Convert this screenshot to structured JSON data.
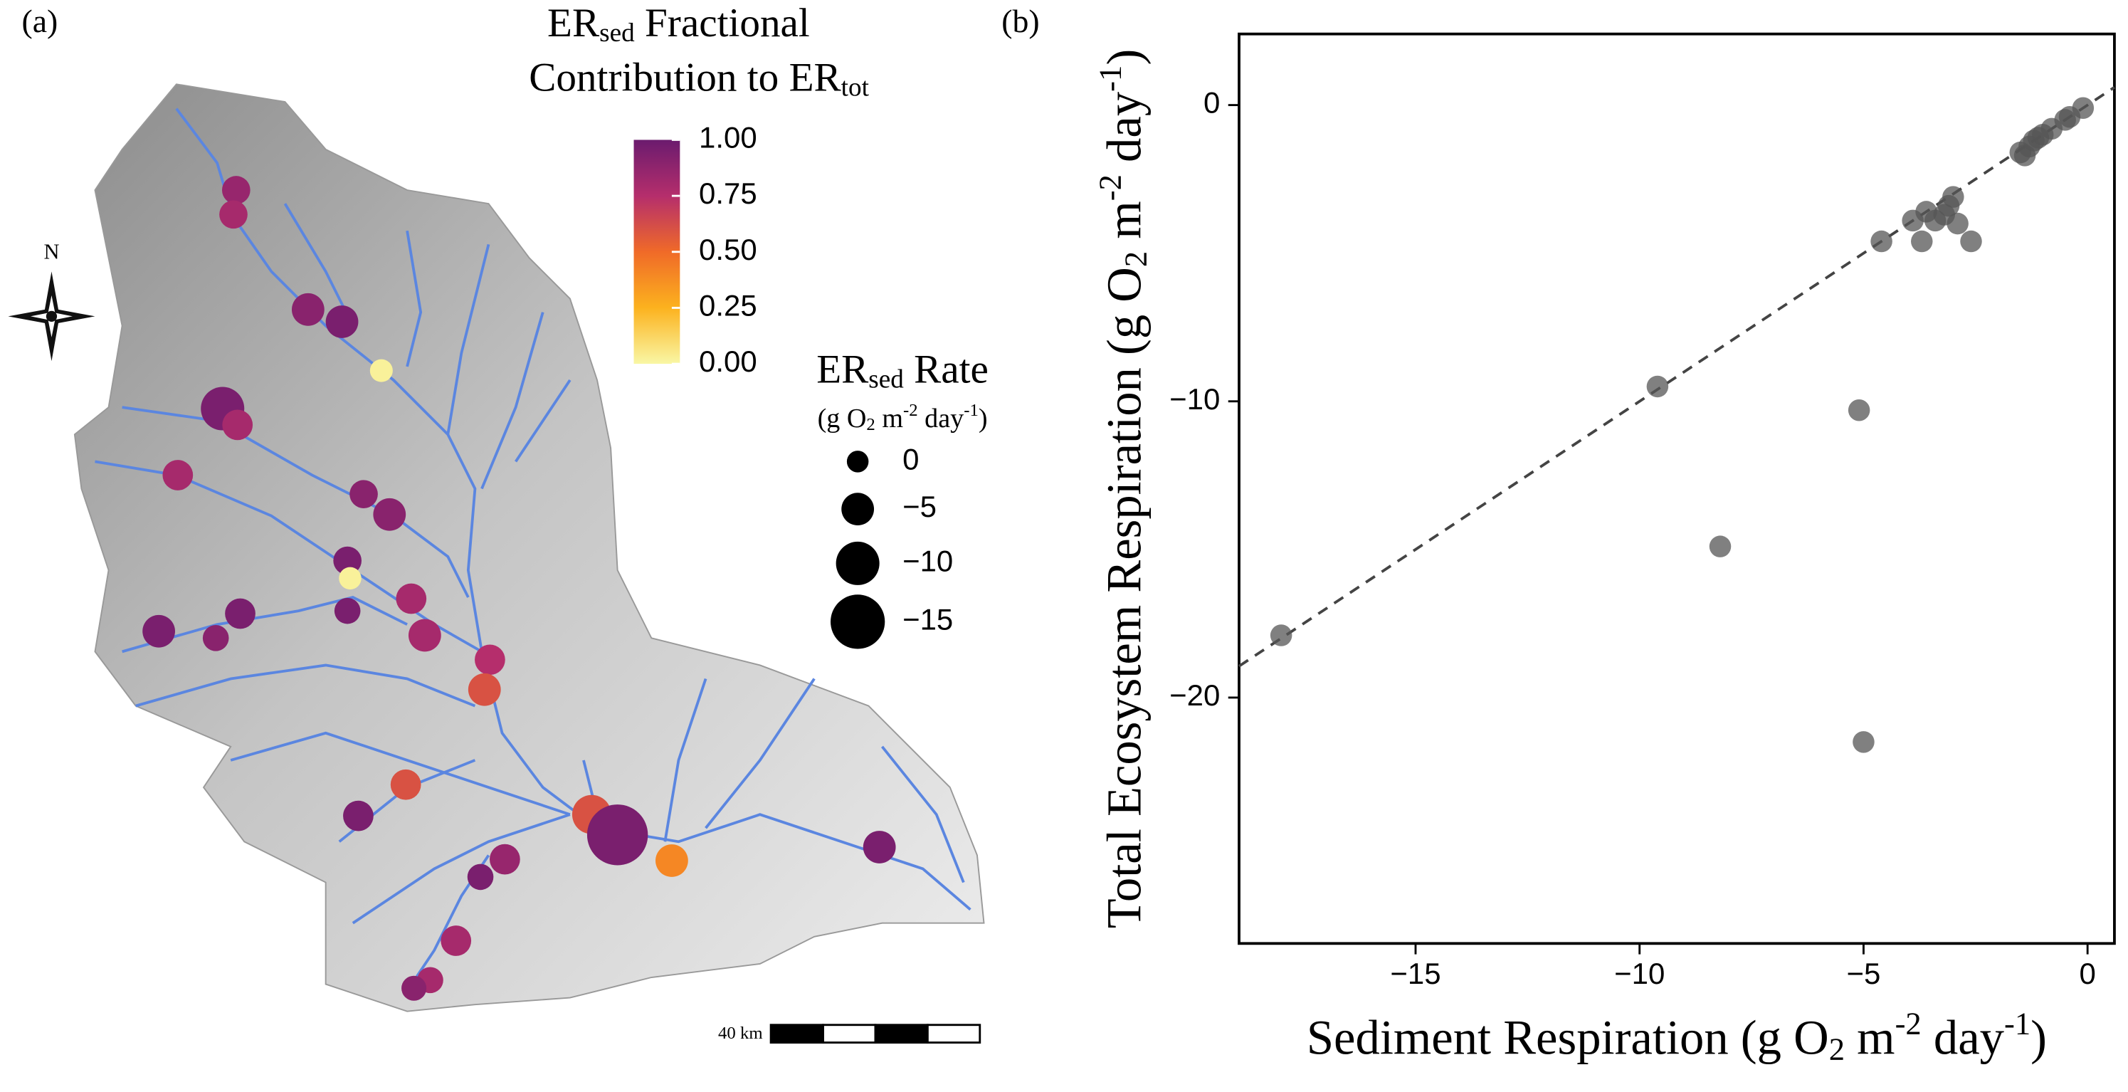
{
  "chart_data": [
    {
      "type": "map",
      "panel_label": "(a)",
      "legend_title": [
        {
          "text": "ER"
        },
        {
          "text": "sed",
          "script": "sub"
        },
        {
          "text": " Fractional"
        }
      ],
      "legend_title_2": [
        {
          "text": "Contribution to ER"
        },
        {
          "text": "tot",
          "script": "sub"
        }
      ],
      "colorscale": [
        "#f9f7a5",
        "#fcb21e",
        "#f06a28",
        "#b52e6c",
        "#6b1b6e"
      ],
      "colorlim": [
        0,
        1
      ],
      "colorticks": [
        {
          "value": 1,
          "label": "1.00"
        },
        {
          "value": 0.75,
          "label": "0.75"
        },
        {
          "value": 0.5,
          "label": "0.50"
        },
        {
          "value": 0.25,
          "label": "0.25"
        },
        {
          "value": 0,
          "label": "0.00"
        }
      ],
      "size_title": [
        {
          "text": "ER"
        },
        {
          "text": "sed",
          "script": "sub"
        },
        {
          "text": " Rate"
        }
      ],
      "size_unit": [
        {
          "text": "(g O"
        },
        {
          "text": "2",
          "script": "sub"
        },
        {
          "text": " m"
        },
        {
          "text": "-2",
          "script": "sup"
        },
        {
          "text": " day"
        },
        {
          "text": "-1",
          "script": "sup"
        },
        {
          "text": ")"
        }
      ],
      "sizeticks": [
        0,
        {
          "value": -5,
          "label": "−5"
        },
        {
          "value": -10,
          "label": "−10"
        },
        {
          "value": -15,
          "label": "−15"
        }
      ],
      "north_label": "N",
      "scale_label": "40 km",
      "sites": {
        "fraction": [
          0.85,
          0.8,
          0.9,
          0.95,
          0.02,
          0.95,
          0.8,
          0.8,
          0.9,
          0.9,
          0.95,
          0.02,
          0.8,
          0.95,
          0.95,
          0.95,
          0.9,
          0.8,
          0.75,
          0.6,
          0.6,
          0.95,
          0.6,
          0.95,
          0.4,
          0.95,
          0.85,
          0.95,
          0.8,
          0.8,
          0.9
        ],
        "rate": [
          -3,
          -3,
          -5,
          -5,
          -0.5,
          -10,
          -4,
          -4,
          -3,
          -5,
          -3,
          -0.3,
          -4,
          -2,
          -4,
          -5,
          -2,
          -5,
          -4,
          -5,
          -4,
          -4,
          -8,
          -18,
          -5,
          -5,
          -4,
          -2,
          -4,
          -2,
          -1.5
        ]
      }
    },
    {
      "type": "scatter",
      "panel_label": "(b)",
      "x_label": [
        {
          "text": "Sediment Respiration (g O"
        },
        {
          "text": "2",
          "script": "sub"
        },
        {
          "text": " m"
        },
        {
          "text": "-2",
          "script": "sup"
        },
        {
          "text": " day"
        },
        {
          "text": "-1",
          "script": "sup"
        },
        {
          "text": ")"
        }
      ],
      "y_label": [
        {
          "text": "Total Ecosystem Respiration (g O"
        },
        {
          "text": "2",
          "script": "sub"
        },
        {
          "text": " m"
        },
        {
          "text": "-2",
          "script": "sup"
        },
        {
          "text": " day"
        },
        {
          "text": "-1",
          "script": "sup"
        },
        {
          "text": ")"
        }
      ],
      "x": [
        -18.0,
        -9.6,
        -5.1,
        -8.2,
        -5.0,
        -4.6,
        -3.9,
        -3.7,
        -3.6,
        -3.4,
        -3.1,
        -3.0,
        -2.9,
        -2.6,
        -3.2,
        -1.5,
        -1.4,
        -1.3,
        -1.2,
        -1.1,
        -1.0,
        -0.8,
        -0.5,
        -0.4,
        -0.1
      ],
      "y": [
        -17.9,
        -9.5,
        -10.3,
        -14.9,
        -21.5,
        -4.6,
        -3.9,
        -4.6,
        -3.6,
        -3.9,
        -3.4,
        -3.1,
        -4.0,
        -4.6,
        -3.7,
        -1.6,
        -1.7,
        -1.4,
        -1.2,
        -1.1,
        -1.0,
        -0.8,
        -0.5,
        -0.4,
        -0.1
      ],
      "color": "#555555",
      "xlim": [
        -18.94,
        0.6
      ],
      "ylim": [
        -28.3,
        2.4
      ],
      "xticks": [
        {
          "value": -15,
          "label": "−15"
        },
        {
          "value": -10,
          "label": "−10"
        },
        {
          "value": -5,
          "label": "−5"
        },
        0
      ],
      "yticks": [
        {
          "value": -20,
          "label": "−20"
        },
        {
          "value": -10,
          "label": "−10"
        },
        0
      ],
      "reference_line": "dashed"
    }
  ]
}
